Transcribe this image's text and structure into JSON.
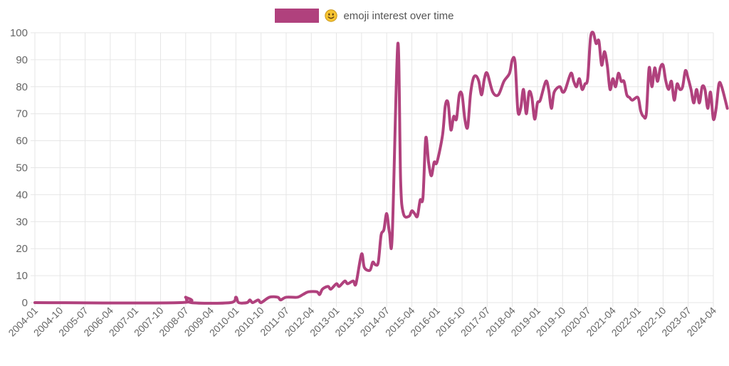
{
  "chart_data": {
    "type": "line",
    "title": "",
    "xlabel": "",
    "ylabel": "",
    "ylim": [
      0,
      100
    ],
    "yticks": [
      0,
      10,
      20,
      30,
      40,
      50,
      60,
      70,
      80,
      90,
      100
    ],
    "x_tick_labels": [
      "2004-01",
      "2004-10",
      "2005-07",
      "2006-04",
      "2007-01",
      "2007-10",
      "2008-07",
      "2009-04",
      "2010-01",
      "2010-10",
      "2011-07",
      "2012-04",
      "2013-01",
      "2013-10",
      "2014-07",
      "2015-04",
      "2016-01",
      "2016-10",
      "2017-07",
      "2018-04",
      "2019-01",
      "2019-10",
      "2020-07",
      "2021-04",
      "2022-01",
      "2022-10",
      "2023-07",
      "2024-04"
    ],
    "grid": true,
    "legend_position": "top-center",
    "series": [
      {
        "name": "emoji interest over time",
        "legend_icon": "slightly-smiling-face-emoji",
        "color": "#b0417d",
        "points": [
          [
            "2004-01",
            0
          ],
          [
            "2008-05",
            0
          ],
          [
            "2008-07",
            2
          ],
          [
            "2008-09",
            0
          ],
          [
            "2009-11",
            0
          ],
          [
            "2010-01",
            2
          ],
          [
            "2010-02",
            0
          ],
          [
            "2010-05",
            0
          ],
          [
            "2010-06",
            1
          ],
          [
            "2010-07",
            0
          ],
          [
            "2010-09",
            1
          ],
          [
            "2010-10",
            0
          ],
          [
            "2011-01",
            2
          ],
          [
            "2011-04",
            2
          ],
          [
            "2011-05",
            1
          ],
          [
            "2011-07",
            2
          ],
          [
            "2011-11",
            2
          ],
          [
            "2012-01",
            3
          ],
          [
            "2012-03",
            4
          ],
          [
            "2012-06",
            4
          ],
          [
            "2012-07",
            3
          ],
          [
            "2012-08",
            5
          ],
          [
            "2012-10",
            6
          ],
          [
            "2012-11",
            5
          ],
          [
            "2013-01",
            7
          ],
          [
            "2013-02",
            6
          ],
          [
            "2013-04",
            8
          ],
          [
            "2013-05",
            7
          ],
          [
            "2013-07",
            8
          ],
          [
            "2013-08",
            7
          ],
          [
            "2013-10",
            18
          ],
          [
            "2013-11",
            13
          ],
          [
            "2014-01",
            12
          ],
          [
            "2014-02",
            15
          ],
          [
            "2014-03",
            14
          ],
          [
            "2014-04",
            15
          ],
          [
            "2014-05",
            25
          ],
          [
            "2014-06",
            27
          ],
          [
            "2014-07",
            33
          ],
          [
            "2014-08",
            26
          ],
          [
            "2014-09",
            25
          ],
          [
            "2014-11",
            96
          ],
          [
            "2014-12",
            45
          ],
          [
            "2015-01",
            33
          ],
          [
            "2015-03",
            32
          ],
          [
            "2015-04",
            34
          ],
          [
            "2015-05",
            33
          ],
          [
            "2015-06",
            32
          ],
          [
            "2015-07",
            38
          ],
          [
            "2015-08",
            39
          ],
          [
            "2015-09",
            61
          ],
          [
            "2015-10",
            52
          ],
          [
            "2015-11",
            47
          ],
          [
            "2015-12",
            52
          ],
          [
            "2016-01",
            52
          ],
          [
            "2016-03",
            62
          ],
          [
            "2016-04",
            73
          ],
          [
            "2016-05",
            74
          ],
          [
            "2016-06",
            64
          ],
          [
            "2016-07",
            69
          ],
          [
            "2016-08",
            68
          ],
          [
            "2016-09",
            77
          ],
          [
            "2016-10",
            77
          ],
          [
            "2016-11",
            68
          ],
          [
            "2016-12",
            65
          ],
          [
            "2017-01",
            77
          ],
          [
            "2017-02",
            83
          ],
          [
            "2017-03",
            84
          ],
          [
            "2017-04",
            82
          ],
          [
            "2017-05",
            77
          ],
          [
            "2017-06",
            83
          ],
          [
            "2017-07",
            85
          ],
          [
            "2017-09",
            78
          ],
          [
            "2017-11",
            77
          ],
          [
            "2018-01",
            82
          ],
          [
            "2018-03",
            85
          ],
          [
            "2018-04",
            90
          ],
          [
            "2018-05",
            89
          ],
          [
            "2018-06",
            71
          ],
          [
            "2018-07",
            72
          ],
          [
            "2018-08",
            79
          ],
          [
            "2018-09",
            70
          ],
          [
            "2018-10",
            78
          ],
          [
            "2018-11",
            76
          ],
          [
            "2018-12",
            68
          ],
          [
            "2019-01",
            74
          ],
          [
            "2019-02",
            75
          ],
          [
            "2019-04",
            82
          ],
          [
            "2019-05",
            79
          ],
          [
            "2019-06",
            72
          ],
          [
            "2019-07",
            78
          ],
          [
            "2019-09",
            80
          ],
          [
            "2019-10",
            78
          ],
          [
            "2019-11",
            79
          ],
          [
            "2020-01",
            85
          ],
          [
            "2020-02",
            82
          ],
          [
            "2020-03",
            80
          ],
          [
            "2020-04",
            83
          ],
          [
            "2020-05",
            79
          ],
          [
            "2020-06",
            81
          ],
          [
            "2020-07",
            83
          ],
          [
            "2020-08",
            98
          ],
          [
            "2020-09",
            100
          ],
          [
            "2020-10",
            96
          ],
          [
            "2020-11",
            97
          ],
          [
            "2020-12",
            88
          ],
          [
            "2021-01",
            93
          ],
          [
            "2021-02",
            88
          ],
          [
            "2021-03",
            79
          ],
          [
            "2021-04",
            83
          ],
          [
            "2021-05",
            80
          ],
          [
            "2021-06",
            85
          ],
          [
            "2021-07",
            82
          ],
          [
            "2021-08",
            82
          ],
          [
            "2021-09",
            77
          ],
          [
            "2021-10",
            76
          ],
          [
            "2021-11",
            75
          ],
          [
            "2022-01",
            76
          ],
          [
            "2022-02",
            71
          ],
          [
            "2022-03",
            69
          ],
          [
            "2022-04",
            70
          ],
          [
            "2022-05",
            87
          ],
          [
            "2022-06",
            80
          ],
          [
            "2022-07",
            87
          ],
          [
            "2022-08",
            82
          ],
          [
            "2022-09",
            87
          ],
          [
            "2022-10",
            88
          ],
          [
            "2022-11",
            82
          ],
          [
            "2022-12",
            79
          ],
          [
            "2023-01",
            82
          ],
          [
            "2023-02",
            75
          ],
          [
            "2023-03",
            81
          ],
          [
            "2023-04",
            79
          ],
          [
            "2023-05",
            80
          ],
          [
            "2023-06",
            86
          ],
          [
            "2023-07",
            83
          ],
          [
            "2023-08",
            79
          ],
          [
            "2023-09",
            74
          ],
          [
            "2023-10",
            79
          ],
          [
            "2023-11",
            74
          ],
          [
            "2023-12",
            80
          ],
          [
            "2024-01",
            79
          ],
          [
            "2024-02",
            72
          ],
          [
            "2024-03",
            78
          ],
          [
            "2024-04",
            68
          ],
          [
            "2024-05",
            72
          ],
          [
            "2024-06",
            81
          ],
          [
            "2024-07",
            80
          ],
          [
            "2024-09",
            72
          ]
        ]
      }
    ]
  }
}
